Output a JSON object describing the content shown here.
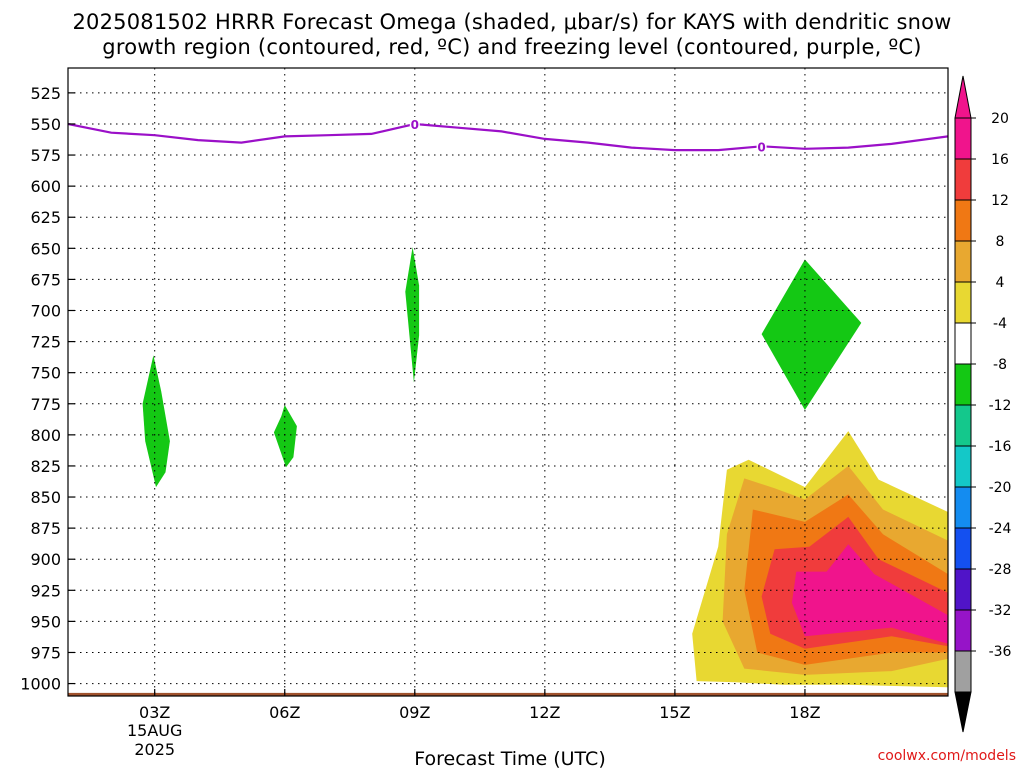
{
  "title_line1": "2025081502 HRRR Forecast Omega (shaded, μbar/s) for KAYS with dendritic snow",
  "title_line2": "growth region (contoured, red, ºC) and freezing level (contoured, purple, ºC)",
  "credit": "coolwx.com/models",
  "chart_data": {
    "type": "time-height contour",
    "xlabel": "Forecast Time (UTC)",
    "x_range_hours": [
      1.0,
      21.3
    ],
    "x_ticks": [
      {
        "hour": 3,
        "label": "03Z"
      },
      {
        "hour": 6,
        "label": "06Z"
      },
      {
        "hour": 9,
        "label": "09Z"
      },
      {
        "hour": 12,
        "label": "12Z"
      },
      {
        "hour": 15,
        "label": "15Z"
      },
      {
        "hour": 18,
        "label": "18Z"
      }
    ],
    "date_label": [
      "15AUG",
      "2025"
    ],
    "y_axis": "pressure (hPa), inverted",
    "y_range": [
      505,
      1010
    ],
    "y_ticks": [
      525,
      550,
      575,
      600,
      625,
      650,
      675,
      700,
      725,
      750,
      775,
      800,
      825,
      850,
      875,
      900,
      925,
      950,
      975,
      1000
    ],
    "grid": "dotted",
    "freezing_level": {
      "label": "0",
      "label_at": [
        {
          "hour": 9.0,
          "p": 550
        },
        {
          "hour": 17.0,
          "p": 568
        }
      ],
      "points": [
        [
          1.0,
          550
        ],
        [
          2.0,
          557
        ],
        [
          3.0,
          559
        ],
        [
          4.0,
          563
        ],
        [
          5.0,
          565
        ],
        [
          6.0,
          560
        ],
        [
          7.0,
          559
        ],
        [
          8.0,
          558
        ],
        [
          9.0,
          550
        ],
        [
          10.0,
          553
        ],
        [
          11.0,
          556
        ],
        [
          12.0,
          562
        ],
        [
          13.0,
          565
        ],
        [
          14.0,
          569
        ],
        [
          15.0,
          571
        ],
        [
          16.0,
          571
        ],
        [
          17.0,
          568
        ],
        [
          18.0,
          570
        ],
        [
          19.0,
          569
        ],
        [
          20.0,
          566
        ],
        [
          21.3,
          560
        ]
      ]
    },
    "colorbar": {
      "levels": [
        20,
        16,
        12,
        8,
        4,
        -4,
        -8,
        -12,
        -16,
        -20,
        -24,
        -28,
        -32,
        -36
      ],
      "colors": [
        "#f0148c",
        "#f03c3c",
        "#f07814",
        "#e8a830",
        "#e8d832",
        "#ffffff",
        "#14c814",
        "#14c88c",
        "#14c8c8",
        "#148cf0",
        "#1450f0",
        "#5014c8",
        "#9614c8",
        "#a0a0a0"
      ],
      "over_color": "#f0148c",
      "under_color": "#000000"
    },
    "omega_regions": [
      {
        "omega": "-4 to -8",
        "color": "#14c814",
        "points": [
          [
            2.97,
            736
          ],
          [
            3.15,
            765
          ],
          [
            3.35,
            805
          ],
          [
            3.25,
            830
          ],
          [
            3.03,
            842
          ],
          [
            2.78,
            805
          ],
          [
            2.72,
            775
          ]
        ]
      },
      {
        "omega": "-4 to -8",
        "color": "#14c814",
        "points": [
          [
            6.0,
            776
          ],
          [
            6.28,
            793
          ],
          [
            6.2,
            818
          ],
          [
            6.03,
            826
          ],
          [
            5.75,
            798
          ],
          [
            5.92,
            785
          ]
        ]
      },
      {
        "omega": "-4 to -8",
        "color": "#14c814",
        "points": [
          [
            8.95,
            649
          ],
          [
            9.1,
            680
          ],
          [
            9.1,
            720
          ],
          [
            8.98,
            758
          ],
          [
            8.78,
            685
          ]
        ]
      },
      {
        "omega": "-4 to -8",
        "color": "#14c814",
        "points": [
          [
            18.0,
            659
          ],
          [
            19.3,
            710
          ],
          [
            18.0,
            780
          ],
          [
            17.0,
            719
          ]
        ]
      },
      {
        "omega": "4 to 8",
        "color": "#e8d832",
        "points": [
          [
            16.2,
            828
          ],
          [
            16.7,
            820
          ],
          [
            18.0,
            842
          ],
          [
            19.0,
            797
          ],
          [
            19.7,
            836
          ],
          [
            21.3,
            862
          ],
          [
            21.3,
            1003
          ],
          [
            19.0,
            1001
          ],
          [
            17.5,
            1001
          ],
          [
            16.4,
            999
          ],
          [
            15.5,
            998
          ],
          [
            15.4,
            960
          ],
          [
            16.0,
            890
          ]
        ]
      },
      {
        "omega": "8 to 12",
        "color": "#e8a830",
        "points": [
          [
            16.6,
            835
          ],
          [
            17.3,
            843
          ],
          [
            18.0,
            852
          ],
          [
            19.0,
            825
          ],
          [
            19.8,
            860
          ],
          [
            21.3,
            885
          ],
          [
            21.3,
            980
          ],
          [
            20.0,
            990
          ],
          [
            18.0,
            993
          ],
          [
            16.6,
            988
          ],
          [
            16.1,
            950
          ],
          [
            16.2,
            880
          ]
        ]
      },
      {
        "omega": "12 to 16",
        "color": "#f07814",
        "points": [
          [
            16.8,
            860
          ],
          [
            18.0,
            870
          ],
          [
            19.0,
            848
          ],
          [
            19.8,
            880
          ],
          [
            21.3,
            912
          ],
          [
            21.3,
            975
          ],
          [
            20.0,
            975
          ],
          [
            18.0,
            985
          ],
          [
            16.9,
            975
          ],
          [
            16.6,
            925
          ]
        ]
      },
      {
        "omega": "16 to 20",
        "color": "#f03c3c",
        "points": [
          [
            17.3,
            892
          ],
          [
            18.1,
            890
          ],
          [
            19.0,
            866
          ],
          [
            19.7,
            900
          ],
          [
            21.3,
            927
          ],
          [
            21.3,
            970
          ],
          [
            20.0,
            962
          ],
          [
            18.0,
            972
          ],
          [
            17.2,
            960
          ],
          [
            17.0,
            930
          ]
        ]
      },
      {
        "omega": "> 20",
        "color": "#f0148c",
        "points": [
          [
            17.8,
            910
          ],
          [
            18.5,
            910
          ],
          [
            19.0,
            888
          ],
          [
            19.6,
            912
          ],
          [
            21.3,
            945
          ],
          [
            21.3,
            968
          ],
          [
            20.0,
            955
          ],
          [
            18.0,
            962
          ],
          [
            17.7,
            935
          ]
        ]
      }
    ],
    "surface_band": {
      "color": "#a0522d",
      "p_top": 1007.5,
      "p_bottom": 1012
    }
  }
}
